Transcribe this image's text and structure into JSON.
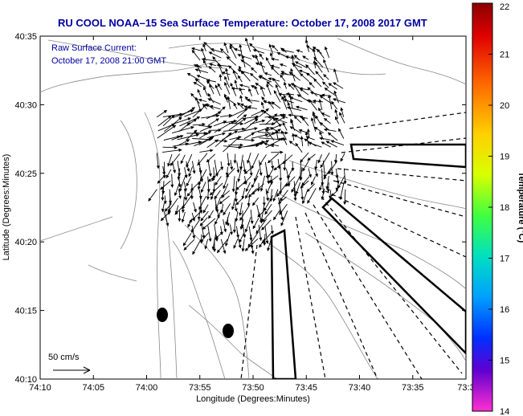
{
  "title": "RU COOL  NOAA–15  Sea Surface Temperature:  October 17, 2008 2017 GMT",
  "annotation": {
    "line1": "Raw Surface Current:",
    "line2": "October 17, 2008 21:00 GMT"
  },
  "scale_label": "50 cm/s",
  "x_axis": {
    "label": "Longitude (Degrees:Minutes)",
    "ticks": [
      "74:10",
      "74:05",
      "74:00",
      "73:55",
      "73:50",
      "73:45",
      "73:40",
      "73:35",
      "73:3"
    ]
  },
  "y_axis": {
    "label": "Latitude (Degrees:Minutes)",
    "ticks": [
      "40:35",
      "40:30",
      "40:25",
      "40:20",
      "40:15",
      "40:10"
    ]
  },
  "colorbar": {
    "label": "Temperature (°C)",
    "min": 14,
    "max": 22,
    "ticks": [
      "22",
      "21",
      "20",
      "19",
      "18",
      "17",
      "16",
      "15",
      "14"
    ]
  },
  "colors": {
    "title": "#0000a0",
    "land_contour": "#888888",
    "vectors": "#000000"
  }
}
